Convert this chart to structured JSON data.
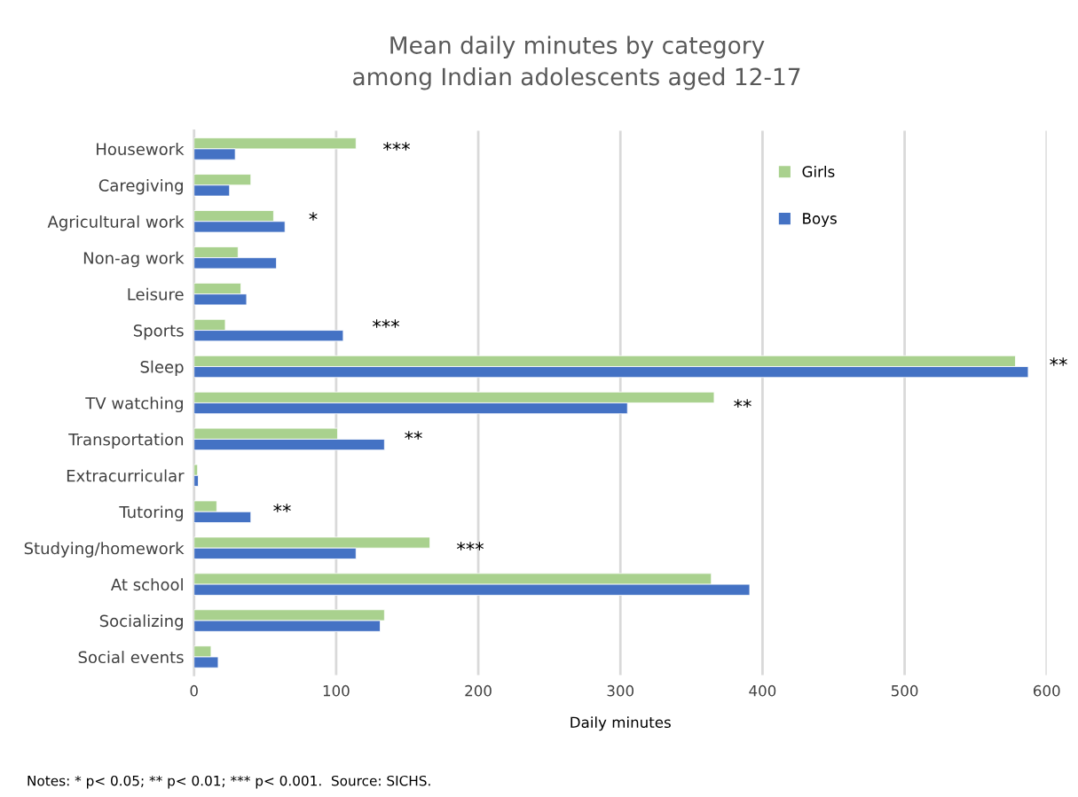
{
  "chart_data": {
    "type": "bar",
    "orientation": "horizontal",
    "title": "Mean daily minutes by category\namong Indian adolescents aged 12-17",
    "xlabel": "Daily minutes",
    "categories": [
      "Housework",
      "Caregiving",
      "Agricultural work",
      "Non-ag work",
      "Leisure",
      "Sports",
      "Sleep",
      "TV watching",
      "Transportation",
      "Extracurricular",
      "Tutoring",
      "Studying/homework",
      "At school",
      "Socializing",
      "Social events"
    ],
    "series": [
      {
        "name": "Girls",
        "color": "#a9d18e",
        "values": [
          114,
          40,
          56,
          31,
          33,
          22,
          578,
          366,
          101,
          2.5,
          16,
          166,
          364,
          134,
          12
        ]
      },
      {
        "name": "Boys",
        "color": "#4472c4",
        "values": [
          29,
          25,
          64,
          58,
          37,
          105,
          587,
          305,
          134,
          3,
          40,
          114,
          391,
          131,
          17
        ]
      }
    ],
    "xlim": [
      0,
      600
    ],
    "xticks": [
      0,
      100,
      200,
      300,
      400,
      500,
      600
    ],
    "grid": "x",
    "legend": "top right",
    "annotations": [
      "***",
      "*",
      "***",
      "**",
      "**",
      "**",
      "**",
      "***",
      "Notes: * p< 0.05; ** p< 0.01; *** p< 0.001.  Source: SICHS."
    ]
  }
}
